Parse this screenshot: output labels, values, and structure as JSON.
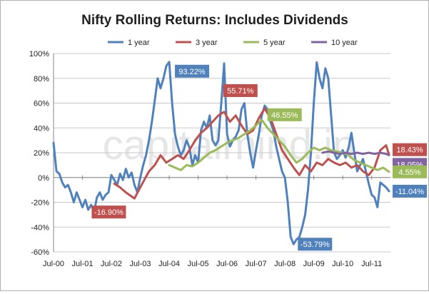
{
  "chart_data": {
    "type": "line",
    "title": "Nifty Rolling Returns: Includes Dividends",
    "watermark": "capitalmind.in",
    "ylim": [
      -60,
      100
    ],
    "yticks": [
      "100%",
      "80%",
      "60%",
      "40%",
      "20%",
      "0%",
      "-20%",
      "-40%",
      "-60%"
    ],
    "xlabels": [
      "Jul-00",
      "Jul-01",
      "Jul-02",
      "Jul-03",
      "Jul-04",
      "Jul-05",
      "Jul-06",
      "Jul-07",
      "Jul-08",
      "Jul-09",
      "Jul-10",
      "Jul-11"
    ],
    "legend_position": "top",
    "grid": "horizontal",
    "series": [
      {
        "name": "1 year",
        "color": "#4f81bd",
        "points": [
          [
            2000.5,
            28
          ],
          [
            2000.6,
            5
          ],
          [
            2000.7,
            3
          ],
          [
            2000.8,
            -4
          ],
          [
            2000.9,
            -8
          ],
          [
            2001.0,
            -6
          ],
          [
            2001.1,
            -12
          ],
          [
            2001.2,
            -20
          ],
          [
            2001.3,
            -12
          ],
          [
            2001.4,
            -18
          ],
          [
            2001.5,
            -24
          ],
          [
            2001.6,
            -18
          ],
          [
            2001.7,
            -26
          ],
          [
            2001.8,
            -22
          ],
          [
            2001.9,
            -28
          ],
          [
            2002.0,
            -16
          ],
          [
            2002.1,
            -12
          ],
          [
            2002.2,
            -18
          ],
          [
            2002.3,
            -14
          ],
          [
            2002.4,
            -12
          ],
          [
            2002.5,
            2
          ],
          [
            2002.6,
            -2
          ],
          [
            2002.7,
            -6
          ],
          [
            2002.8,
            3
          ],
          [
            2002.9,
            -2
          ],
          [
            2003.0,
            7
          ],
          [
            2003.1,
            0
          ],
          [
            2003.2,
            4
          ],
          [
            2003.3,
            -6
          ],
          [
            2003.4,
            -12
          ],
          [
            2003.5,
            0
          ],
          [
            2003.6,
            10
          ],
          [
            2003.7,
            18
          ],
          [
            2003.8,
            30
          ],
          [
            2003.9,
            45
          ],
          [
            2004.0,
            62
          ],
          [
            2004.1,
            80
          ],
          [
            2004.2,
            72
          ],
          [
            2004.3,
            80
          ],
          [
            2004.4,
            90
          ],
          [
            2004.5,
            93.22
          ],
          [
            2004.6,
            60
          ],
          [
            2004.7,
            35
          ],
          [
            2004.8,
            25
          ],
          [
            2004.9,
            18
          ],
          [
            2005.0,
            22
          ],
          [
            2005.1,
            30
          ],
          [
            2005.2,
            24
          ],
          [
            2005.3,
            10
          ],
          [
            2005.4,
            18
          ],
          [
            2005.5,
            12
          ],
          [
            2005.6,
            38
          ],
          [
            2005.7,
            45
          ],
          [
            2005.8,
            40
          ],
          [
            2005.9,
            50
          ],
          [
            2006.0,
            30
          ],
          [
            2006.1,
            26
          ],
          [
            2006.2,
            30
          ],
          [
            2006.3,
            60
          ],
          [
            2006.4,
            92
          ],
          [
            2006.5,
            35
          ],
          [
            2006.6,
            25
          ],
          [
            2006.7,
            30
          ],
          [
            2006.8,
            33
          ],
          [
            2006.9,
            38
          ],
          [
            2007.0,
            55
          ],
          [
            2007.1,
            60
          ],
          [
            2007.2,
            35
          ],
          [
            2007.3,
            20
          ],
          [
            2007.4,
            8
          ],
          [
            2007.5,
            22
          ],
          [
            2007.6,
            35
          ],
          [
            2007.7,
            50
          ],
          [
            2007.8,
            58
          ],
          [
            2007.9,
            55
          ],
          [
            2008.0,
            45
          ],
          [
            2008.1,
            38
          ],
          [
            2008.2,
            25
          ],
          [
            2008.3,
            15
          ],
          [
            2008.4,
            5
          ],
          [
            2008.5,
            0
          ],
          [
            2008.6,
            -20
          ],
          [
            2008.7,
            -48
          ],
          [
            2008.8,
            -53.79
          ],
          [
            2008.9,
            -50
          ],
          [
            2009.0,
            -48
          ],
          [
            2009.1,
            -40
          ],
          [
            2009.2,
            -30
          ],
          [
            2009.3,
            -10
          ],
          [
            2009.4,
            20
          ],
          [
            2009.5,
            60
          ],
          [
            2009.6,
            93
          ],
          [
            2009.7,
            80
          ],
          [
            2009.8,
            72
          ],
          [
            2009.9,
            88
          ],
          [
            2010.0,
            80
          ],
          [
            2010.1,
            50
          ],
          [
            2010.2,
            20
          ],
          [
            2010.3,
            15
          ],
          [
            2010.4,
            18
          ],
          [
            2010.5,
            22
          ],
          [
            2010.6,
            16
          ],
          [
            2010.7,
            24
          ],
          [
            2010.8,
            36
          ],
          [
            2010.9,
            20
          ],
          [
            2011.0,
            5
          ],
          [
            2011.1,
            10
          ],
          [
            2011.2,
            15
          ],
          [
            2011.3,
            5
          ],
          [
            2011.4,
            -5
          ],
          [
            2011.5,
            -14
          ],
          [
            2011.6,
            -16
          ],
          [
            2011.7,
            -24
          ],
          [
            2011.8,
            -4
          ],
          [
            2011.9,
            -6
          ],
          [
            2012.0,
            -8
          ],
          [
            2012.1,
            -11.04
          ]
        ]
      },
      {
        "name": "3 year",
        "color": "#c0504d",
        "points": [
          [
            2002.6,
            -5
          ],
          [
            2002.8,
            -8
          ],
          [
            2003.0,
            -12
          ],
          [
            2003.3,
            -16.9
          ],
          [
            2003.5,
            -8
          ],
          [
            2003.8,
            5
          ],
          [
            2004.0,
            10
          ],
          [
            2004.2,
            18
          ],
          [
            2004.4,
            12
          ],
          [
            2004.6,
            15
          ],
          [
            2004.8,
            18
          ],
          [
            2005.0,
            15
          ],
          [
            2005.2,
            22
          ],
          [
            2005.4,
            30
          ],
          [
            2005.6,
            36
          ],
          [
            2005.8,
            40
          ],
          [
            2006.0,
            45
          ],
          [
            2006.2,
            50
          ],
          [
            2006.4,
            53
          ],
          [
            2006.6,
            45
          ],
          [
            2006.8,
            50
          ],
          [
            2007.0,
            42
          ],
          [
            2007.2,
            35
          ],
          [
            2007.4,
            38
          ],
          [
            2007.6,
            48
          ],
          [
            2007.8,
            55.71
          ],
          [
            2008.0,
            48
          ],
          [
            2008.2,
            35
          ],
          [
            2008.4,
            22
          ],
          [
            2008.6,
            15
          ],
          [
            2008.8,
            8
          ],
          [
            2009.0,
            2
          ],
          [
            2009.2,
            10
          ],
          [
            2009.4,
            5
          ],
          [
            2009.6,
            12
          ],
          [
            2009.8,
            10
          ],
          [
            2010.0,
            15
          ],
          [
            2010.2,
            12
          ],
          [
            2010.4,
            10
          ],
          [
            2010.6,
            12
          ],
          [
            2010.8,
            8
          ],
          [
            2011.0,
            10
          ],
          [
            2011.2,
            5
          ],
          [
            2011.4,
            2
          ],
          [
            2011.6,
            8
          ],
          [
            2011.8,
            22
          ],
          [
            2012.0,
            26
          ],
          [
            2012.1,
            18.43
          ]
        ]
      },
      {
        "name": "5 year",
        "color": "#9bbb59",
        "points": [
          [
            2004.5,
            10
          ],
          [
            2004.7,
            8
          ],
          [
            2004.9,
            6
          ],
          [
            2005.1,
            10
          ],
          [
            2005.3,
            9
          ],
          [
            2005.5,
            12
          ],
          [
            2005.7,
            16
          ],
          [
            2005.9,
            20
          ],
          [
            2006.1,
            22
          ],
          [
            2006.3,
            25
          ],
          [
            2006.5,
            28
          ],
          [
            2006.7,
            30
          ],
          [
            2006.9,
            32
          ],
          [
            2007.1,
            35
          ],
          [
            2007.3,
            38
          ],
          [
            2007.5,
            42
          ],
          [
            2007.7,
            46.55
          ],
          [
            2007.9,
            40
          ],
          [
            2008.1,
            35
          ],
          [
            2008.3,
            30
          ],
          [
            2008.5,
            25
          ],
          [
            2008.7,
            18
          ],
          [
            2008.9,
            12
          ],
          [
            2009.1,
            15
          ],
          [
            2009.3,
            20
          ],
          [
            2009.5,
            24
          ],
          [
            2009.7,
            22
          ],
          [
            2009.9,
            24
          ],
          [
            2010.1,
            22
          ],
          [
            2010.3,
            21
          ],
          [
            2010.5,
            20
          ],
          [
            2010.7,
            18
          ],
          [
            2010.9,
            14
          ],
          [
            2011.1,
            12
          ],
          [
            2011.3,
            10
          ],
          [
            2011.5,
            8
          ],
          [
            2011.7,
            6
          ],
          [
            2011.9,
            8
          ],
          [
            2012.1,
            4.55
          ]
        ]
      },
      {
        "name": "10 year",
        "color": "#8064a2",
        "points": [
          [
            2009.8,
            20
          ],
          [
            2010.0,
            21
          ],
          [
            2010.2,
            20
          ],
          [
            2010.4,
            19
          ],
          [
            2010.6,
            20
          ],
          [
            2010.8,
            19
          ],
          [
            2011.0,
            20
          ],
          [
            2011.2,
            19
          ],
          [
            2011.4,
            20
          ],
          [
            2011.6,
            19
          ],
          [
            2011.8,
            20
          ],
          [
            2012.0,
            19
          ],
          [
            2012.1,
            18.05
          ]
        ]
      }
    ],
    "annotations": [
      {
        "text": "93.22%",
        "color": "#4f81bd",
        "anchor": [
          2004.5,
          93.22
        ],
        "place": "right-below"
      },
      {
        "text": "-16.90%",
        "color": "#c0504d",
        "anchor": [
          2003.3,
          -16.9
        ],
        "place": "left-below"
      },
      {
        "text": "55.71%",
        "color": "#c0504d",
        "anchor": [
          2007.8,
          55.71
        ],
        "place": "left-above"
      },
      {
        "text": "46.55%",
        "color": "#9bbb59",
        "anchor": [
          2007.7,
          46.55
        ],
        "place": "right-above"
      },
      {
        "text": "-53.79%",
        "color": "#4f81bd",
        "anchor": [
          2008.8,
          -53.79
        ],
        "place": "right"
      },
      {
        "text": "18.43%",
        "color": "#c0504d",
        "anchor": [
          2012.1,
          18.43
        ],
        "place": "right-above"
      },
      {
        "text": "18.05%",
        "color": "#8064a2",
        "anchor": [
          2012.1,
          18.05
        ],
        "place": "right-below"
      },
      {
        "text": "4.55%",
        "color": "#9bbb59",
        "anchor": [
          2012.1,
          4.55
        ],
        "place": "right"
      },
      {
        "text": "-11.04%",
        "color": "#4f81bd",
        "anchor": [
          2012.1,
          -11.04
        ],
        "place": "right"
      }
    ]
  }
}
